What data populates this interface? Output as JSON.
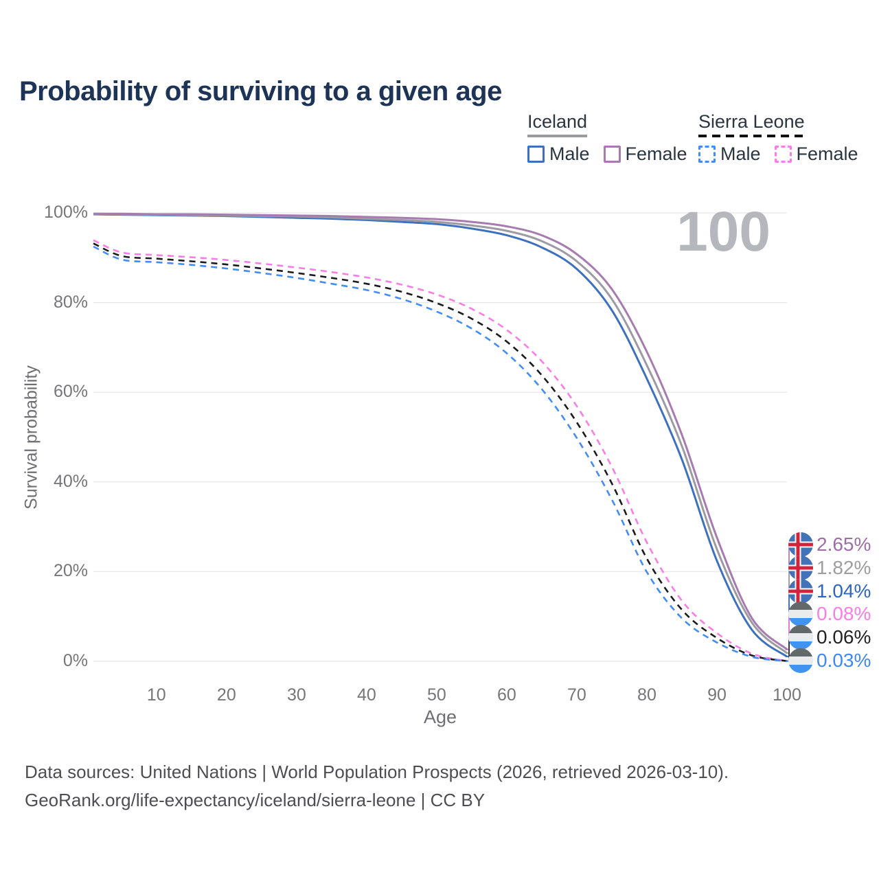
{
  "title": "Probability of surviving to a given age",
  "legend": {
    "groups": [
      {
        "country": "Iceland",
        "line_style": "solid",
        "underline_color": "#9a9aa0",
        "items": [
          {
            "label": "Male",
            "color": "#3e70c0",
            "dashed": false
          },
          {
            "label": "Female",
            "color": "#a77bb0",
            "dashed": false
          }
        ]
      },
      {
        "country": "Sierra Leone",
        "line_style": "dashed",
        "underline_color": "#111111",
        "items": [
          {
            "label": "Male",
            "color": "#418df5",
            "dashed": true
          },
          {
            "label": "Female",
            "color": "#f97de6",
            "dashed": true
          }
        ]
      }
    ]
  },
  "age_counter": "100",
  "y_axis": {
    "label": "Survival probability",
    "ticks": [
      {
        "label": "0%",
        "value": 0
      },
      {
        "label": "20%",
        "value": 20
      },
      {
        "label": "40%",
        "value": 40
      },
      {
        "label": "60%",
        "value": 60
      },
      {
        "label": "80%",
        "value": 80
      },
      {
        "label": "100%",
        "value": 100
      }
    ]
  },
  "x_axis": {
    "label": "Age",
    "ticks": [
      {
        "label": "10",
        "value": 10
      },
      {
        "label": "20",
        "value": 20
      },
      {
        "label": "30",
        "value": 30
      },
      {
        "label": "40",
        "value": 40
      },
      {
        "label": "50",
        "value": 50
      },
      {
        "label": "60",
        "value": 60
      },
      {
        "label": "70",
        "value": 70
      },
      {
        "label": "80",
        "value": 80
      },
      {
        "label": "90",
        "value": 90
      },
      {
        "label": "100",
        "value": 100
      }
    ]
  },
  "end_labels": [
    {
      "value": "2.65%",
      "flag": "iceland",
      "color": "#9c6fa4",
      "series": "iceland-female"
    },
    {
      "value": "1.82%",
      "flag": "iceland",
      "color": "#9e9e9e",
      "series": "iceland-both"
    },
    {
      "value": "1.04%",
      "flag": "iceland",
      "color": "#2d66c0",
      "series": "iceland-male"
    },
    {
      "value": "0.08%",
      "flag": "sierra-leone",
      "color": "#f97de6",
      "series": "sierra-leone-female"
    },
    {
      "value": "0.06%",
      "flag": "sierra-leone",
      "color": "#222222",
      "series": "sierra-leone-both"
    },
    {
      "value": "0.03%",
      "flag": "sierra-leone",
      "color": "#3f87f2",
      "series": "sierra-leone-male"
    }
  ],
  "footer": {
    "line1": "Data sources: United Nations | World Population Prospects (2026, retrieved 2026-03-10).",
    "line2": "GeoRank.org/life-expectancy/iceland/sierra-leone | CC BY"
  },
  "colors": {
    "grid": "#e8e8ea",
    "iceland_flag_blue": "#4272b8",
    "iceland_flag_red": "#d0243c",
    "sierra_leone_flag_top": "#63686b",
    "sierra_leone_flag_mid": "#e9ebed",
    "sierra_leone_flag_bottom": "#4193f0"
  },
  "chart_data": {
    "type": "line",
    "title": "Probability of surviving to a given age",
    "xlabel": "Age",
    "ylabel": "Survival probability",
    "xlim": [
      1,
      100
    ],
    "ylim": [
      0,
      100
    ],
    "grid": true,
    "legend_position": "top-right",
    "x": [
      1,
      5,
      10,
      15,
      20,
      25,
      30,
      35,
      40,
      45,
      50,
      55,
      60,
      65,
      70,
      75,
      80,
      85,
      90,
      95,
      100
    ],
    "series": [
      {
        "id": "sierra-leone-female",
        "name": "Sierra Leone Female",
        "country": "Sierra Leone",
        "sex": "Female",
        "color": "#f97de6",
        "dashed": true,
        "end_value_pct": 0.08,
        "values": [
          93.9,
          91.2,
          90.6,
          90.1,
          89.5,
          88.7,
          87.8,
          86.8,
          85.6,
          84.0,
          81.8,
          78.6,
          73.9,
          66.9,
          56.9,
          43.4,
          26.5,
          13.5,
          6.3,
          1.7,
          0.08
        ]
      },
      {
        "id": "sierra-leone-both",
        "name": "Sierra Leone Both sexes",
        "country": "Sierra Leone",
        "sex": "Both",
        "color": "#1b1b1b",
        "dashed": true,
        "end_value_pct": 0.06,
        "values": [
          93.2,
          90.4,
          89.8,
          89.2,
          88.5,
          87.6,
          86.6,
          85.5,
          84.2,
          82.4,
          79.9,
          76.4,
          71.3,
          63.8,
          53.3,
          39.7,
          22.9,
          11.5,
          5.2,
          1.3,
          0.06
        ]
      },
      {
        "id": "sierra-leone-male",
        "name": "Sierra Leone Male",
        "country": "Sierra Leone",
        "sex": "Male",
        "color": "#418df5",
        "dashed": true,
        "end_value_pct": 0.03,
        "values": [
          92.5,
          89.6,
          89.0,
          88.4,
          87.6,
          86.6,
          85.5,
          84.2,
          82.8,
          80.8,
          78.0,
          74.2,
          68.7,
          60.7,
          49.8,
          36.1,
          19.9,
          9.6,
          4.2,
          1.0,
          0.03
        ]
      },
      {
        "id": "iceland-male",
        "name": "Iceland Male",
        "country": "Iceland",
        "sex": "Male",
        "color": "#3e70c0",
        "dashed": false,
        "end_value_pct": 1.04,
        "values": [
          99.7,
          99.6,
          99.5,
          99.4,
          99.3,
          99.1,
          98.9,
          98.7,
          98.4,
          98.0,
          97.5,
          96.5,
          95.0,
          92.3,
          87.5,
          78.3,
          63.0,
          45.0,
          22.4,
          7.0,
          1.04
        ]
      },
      {
        "id": "iceland-both",
        "name": "Iceland Both sexes",
        "country": "Iceland",
        "sex": "Both",
        "color": "#9b9ba1",
        "dashed": false,
        "end_value_pct": 1.82,
        "values": [
          99.8,
          99.7,
          99.6,
          99.5,
          99.4,
          99.3,
          99.2,
          99.0,
          98.7,
          98.4,
          98.0,
          97.2,
          96.0,
          93.7,
          89.2,
          80.8,
          66.0,
          48.0,
          25.0,
          8.6,
          1.82
        ]
      },
      {
        "id": "iceland-female",
        "name": "Iceland Female",
        "country": "Iceland",
        "sex": "Female",
        "color": "#a77bb0",
        "dashed": false,
        "end_value_pct": 2.65,
        "values": [
          99.8,
          99.8,
          99.7,
          99.7,
          99.6,
          99.5,
          99.4,
          99.3,
          99.1,
          98.9,
          98.6,
          98.0,
          97.0,
          95.0,
          90.8,
          83.0,
          69.0,
          50.5,
          27.6,
          9.6,
          2.65
        ]
      }
    ]
  }
}
